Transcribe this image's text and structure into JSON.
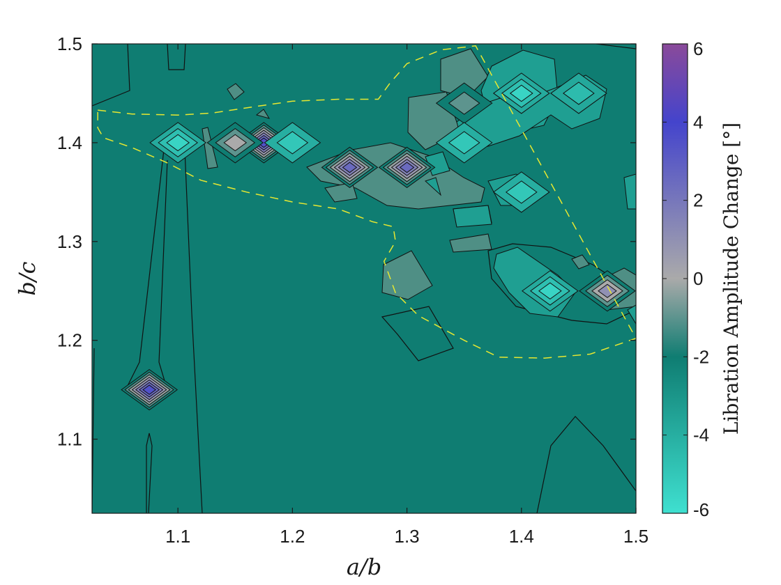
{
  "chart_data": {
    "type": "heatmap",
    "subtype": "filled-contour",
    "title": "",
    "xlabel": "a/b",
    "ylabel": "b/c",
    "xlim": [
      1.025,
      1.5
    ],
    "ylim": [
      1.025,
      1.5
    ],
    "xticks": [
      "1.1",
      "1.2",
      "1.3",
      "1.4",
      "1.5"
    ],
    "yticks": [
      "1.1",
      "1.2",
      "1.3",
      "1.4",
      "1.5"
    ],
    "grid": false,
    "colorbar": {
      "label": "Libration Amplitude Change [°]",
      "range": [
        -6,
        6
      ],
      "ticks": [
        "-6",
        "-4",
        "-2",
        "0",
        "2",
        "4",
        "6"
      ],
      "colormap": [
        "#3fe0d0",
        "#0f7d72",
        "#aaaaaa",
        "#4444cc",
        "#8a4a9a"
      ]
    },
    "background_value": -3,
    "features": [
      {
        "kind": "peak",
        "x": 1.075,
        "y": 1.15,
        "value": 3.5
      },
      {
        "kind": "peak",
        "x": 1.175,
        "y": 1.4,
        "value": 3.5
      },
      {
        "kind": "peak",
        "x": 1.25,
        "y": 1.375,
        "value": 2.5
      },
      {
        "kind": "peak",
        "x": 1.3,
        "y": 1.375,
        "value": 2.5
      },
      {
        "kind": "peak",
        "x": 1.15,
        "y": 1.4,
        "value": 0
      },
      {
        "kind": "peak",
        "x": 1.35,
        "y": 1.44,
        "value": -1
      },
      {
        "kind": "peak",
        "x": 1.475,
        "y": 1.25,
        "value": 1
      },
      {
        "kind": "trough",
        "x": 1.1,
        "y": 1.4,
        "value": -5.5
      },
      {
        "kind": "trough",
        "x": 1.2,
        "y": 1.4,
        "value": -5
      },
      {
        "kind": "trough",
        "x": 1.4,
        "y": 1.45,
        "value": -5.5
      },
      {
        "kind": "trough",
        "x": 1.425,
        "y": 1.25,
        "value": -5.5
      },
      {
        "kind": "trough",
        "x": 1.45,
        "y": 1.45,
        "value": -4.5
      },
      {
        "kind": "trough",
        "x": 1.4,
        "y": 1.35,
        "value": -5
      },
      {
        "kind": "trough",
        "x": 1.35,
        "y": 1.4,
        "value": -5
      }
    ],
    "boundary": {
      "style": "dashed",
      "color": "#e8e830",
      "points": [
        [
          1.03,
          1.433
        ],
        [
          1.06,
          1.429
        ],
        [
          1.1,
          1.428
        ],
        [
          1.13,
          1.43
        ],
        [
          1.17,
          1.437
        ],
        [
          1.2,
          1.442
        ],
        [
          1.24,
          1.444
        ],
        [
          1.275,
          1.444
        ],
        [
          1.285,
          1.46
        ],
        [
          1.3,
          1.48
        ],
        [
          1.33,
          1.494
        ],
        [
          1.36,
          1.498
        ],
        [
          1.5,
          1.202
        ],
        [
          1.46,
          1.186
        ],
        [
          1.42,
          1.182
        ],
        [
          1.38,
          1.183
        ],
        [
          1.35,
          1.2
        ],
        [
          1.31,
          1.225
        ],
        [
          1.29,
          1.248
        ],
        [
          1.28,
          1.28
        ],
        [
          1.29,
          1.3
        ],
        [
          1.288,
          1.315
        ],
        [
          1.27,
          1.32
        ],
        [
          1.24,
          1.333
        ],
        [
          1.2,
          1.34
        ],
        [
          1.16,
          1.35
        ],
        [
          1.12,
          1.362
        ],
        [
          1.09,
          1.38
        ],
        [
          1.06,
          1.395
        ],
        [
          1.035,
          1.405
        ],
        [
          1.03,
          1.415
        ],
        [
          1.03,
          1.433
        ]
      ]
    }
  }
}
